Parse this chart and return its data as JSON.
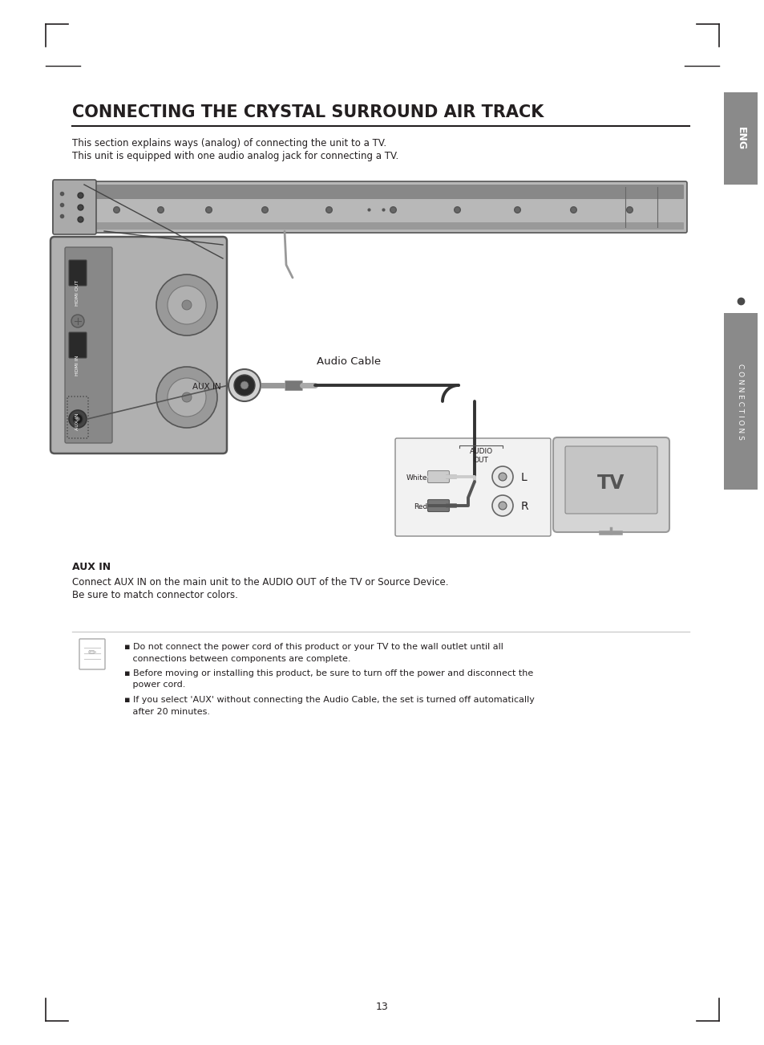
{
  "title": "CONNECTING THE CRYSTAL SURROUND AIR TRACK",
  "subtitle_line1": "This section explains ways (analog) of connecting the unit to a TV.",
  "subtitle_line2": "This unit is equipped with one audio analog jack for connecting a TV.",
  "aux_in_heading": "AUX IN",
  "aux_in_desc_line1": "Connect AUX IN on the main unit to the AUDIO OUT of the TV or Source Device.",
  "aux_in_desc_line2": "Be sure to match connector colors.",
  "note_bullet1a": "Do not connect the power cord of this product or your TV to the wall outlet until all",
  "note_bullet1b": "connections between components are complete.",
  "note_bullet2a": "Before moving or installing this product, be sure to turn off the power and disconnect the",
  "note_bullet2b": "power cord.",
  "note_bullet3a": "If you select 'AUX' without connecting the Audio Cable, the set is turned off automatically",
  "note_bullet3b": "after 20 minutes.",
  "page_number": "13",
  "eng_label": "ENG",
  "connections_label": "C O N N E C T I O N S",
  "audio_cable_label": "Audio Cable",
  "aux_in_label": "AUX IN",
  "audio_out_label": "AUDIO\nOUT",
  "white_label": "White",
  "red_label": "Red",
  "l_label": "L",
  "r_label": "R",
  "tv_label": "TV",
  "bg_color": "#ffffff",
  "text_color": "#231f20",
  "light_gray": "#d0d0d0",
  "mid_gray": "#9e9e9e",
  "dark_gray": "#555555",
  "sidebar_color": "#8a8a8a",
  "tab_color": "#4a4a4a"
}
